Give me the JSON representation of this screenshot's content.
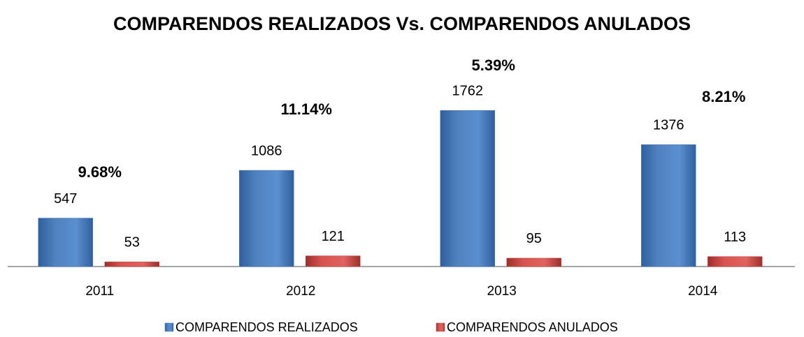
{
  "chart_data": {
    "type": "bar",
    "title": "COMPARENDOS REALIZADOS Vs. COMPARENDOS ANULADOS",
    "categories": [
      "2011",
      "2012",
      "2013",
      "2014"
    ],
    "series": [
      {
        "name": "COMPARENDOS REALIZADOS",
        "color": "#4f81bd",
        "values": [
          547,
          1086,
          1762,
          1376
        ]
      },
      {
        "name": "COMPARENDOS ANULADOS",
        "color": "#c0504d",
        "values": [
          53,
          121,
          95,
          113
        ]
      }
    ],
    "annotations": [
      "9.68%",
      "11.14%",
      "5.39%",
      "8.21%"
    ],
    "ylim": [
      0,
      2000
    ],
    "grid": false,
    "legend": "bottom"
  }
}
